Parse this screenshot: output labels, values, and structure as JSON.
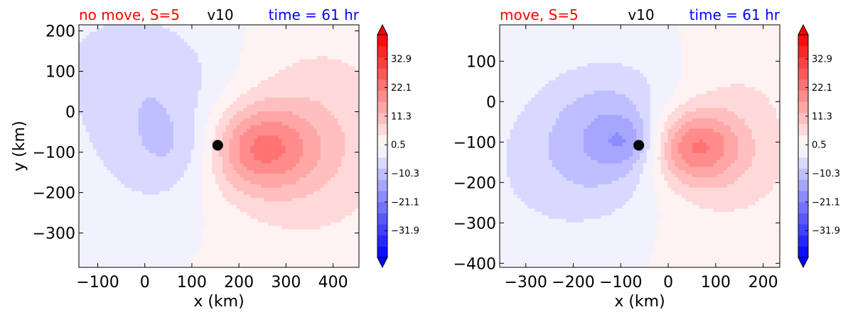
{
  "chart_data": [
    {
      "type": "heatmap",
      "title_left": "no move, S=5",
      "title_center": "v10",
      "title_right": "time = 61 hr",
      "xlabel": "x (km)",
      "ylabel": "y (km)",
      "xlim": [
        -140,
        455
      ],
      "ylim": [
        -385,
        215
      ],
      "xticks": [
        -100,
        0,
        100,
        200,
        300,
        400
      ],
      "xtick_labels": [
        "−100",
        "0",
        "100",
        "200",
        "300",
        "400"
      ],
      "yticks": [
        200,
        100,
        0,
        -100,
        -200,
        -300
      ],
      "ytick_labels": [
        "200",
        "100",
        "0",
        "−100",
        "−200",
        "−300"
      ],
      "center_marker": {
        "x": 155,
        "y": -83
      },
      "field": {
        "blobs": [
          {
            "x": 60,
            "y": -60,
            "sx": 130,
            "sy": 150,
            "amp": -9
          },
          {
            "x": 110,
            "y": -90,
            "sx": 70,
            "sy": 60,
            "amp": -6
          },
          {
            "x": 230,
            "y": -90,
            "sx": 90,
            "sy": 75,
            "amp": 20
          },
          {
            "x": 320,
            "y": -130,
            "sx": 170,
            "sy": 160,
            "amp": 7
          },
          {
            "x": 370,
            "y": 80,
            "sx": 140,
            "sy": 120,
            "amp": 3
          },
          {
            "x": -60,
            "y": 140,
            "sx": 150,
            "sy": 120,
            "amp": -4
          }
        ]
      }
    },
    {
      "type": "heatmap",
      "title_left": "move, S=5",
      "title_center": "v10",
      "title_right": "time = 61 hr",
      "xlabel": "x (km)",
      "ylabel": "",
      "xlim": [
        -355,
        235
      ],
      "ylim": [
        -410,
        190
      ],
      "xticks": [
        -300,
        -200,
        -100,
        0,
        100,
        200
      ],
      "xtick_labels": [
        "−300",
        "−200",
        "−100",
        "0",
        "100",
        "200"
      ],
      "yticks": [
        100,
        0,
        -100,
        -200,
        -300,
        -400
      ],
      "ytick_labels": [
        "100",
        "0",
        "−100",
        "−200",
        "−300",
        "−400"
      ],
      "center_marker": {
        "x": -62,
        "y": -108
      },
      "field": {
        "blobs": [
          {
            "x": -110,
            "y": -80,
            "sx": 110,
            "sy": 120,
            "amp": -12
          },
          {
            "x": -80,
            "y": -100,
            "sx": 45,
            "sy": 45,
            "amp": -8
          },
          {
            "x": 50,
            "y": -110,
            "sx": 70,
            "sy": 65,
            "amp": 20
          },
          {
            "x": 110,
            "y": -150,
            "sx": 140,
            "sy": 140,
            "amp": 6
          },
          {
            "x": -250,
            "y": -180,
            "sx": 140,
            "sy": 150,
            "amp": -4
          },
          {
            "x": 170,
            "y": 60,
            "sx": 100,
            "sy": 90,
            "amp": 2
          }
        ]
      }
    }
  ],
  "colorbar": {
    "min": -42,
    "max": 42,
    "levels": 20,
    "extend": "both",
    "tick_values": [
      32.9,
      22.1,
      11.3,
      0.5,
      -10.3,
      -21.1,
      -31.9
    ],
    "tick_labels": [
      "32.9",
      "22.1",
      "11.3",
      "0.5",
      "−10.3",
      "−21.1",
      "−31.9"
    ],
    "colormap": "bwr",
    "colors": {
      "low": "#0000ff",
      "mid": "#ffffff",
      "high": "#ff0000"
    }
  },
  "colors": {
    "title_left": "#ff0000",
    "title_center": "#000000",
    "title_right": "#0000ff",
    "marker": "#000000"
  }
}
